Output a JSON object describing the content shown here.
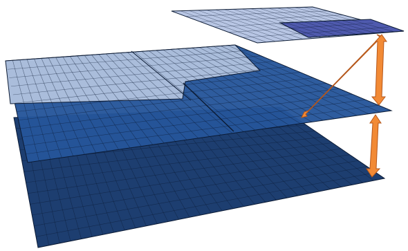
{
  "colors": {
    "background": "#ffffff",
    "grid_line": "#0b1a33",
    "arrow_fill": "#f28a35",
    "arrow_stroke": "#b4561a",
    "top_layer_light": "#b8c6e4",
    "top_layer_highlight": "#4f5aae",
    "middle_layer_light": "#aabddb",
    "middle_layer_dark": "#25559a",
    "bottom_layer_dark": "#1d3e70"
  },
  "diagram": {
    "layers": [
      {
        "name": "top-layer",
        "level": 1,
        "regions": 2
      },
      {
        "name": "middle-layer",
        "level": 2,
        "regions": 2
      },
      {
        "name": "bottom-layer",
        "level": 3,
        "regions": 1
      }
    ],
    "connectors": [
      {
        "name": "arrow-top-to-middle-diagonal",
        "type": "double-arrow"
      },
      {
        "name": "arrow-top-to-middle-vertical",
        "type": "double-arrow"
      },
      {
        "name": "arrow-middle-to-bottom",
        "type": "double-arrow"
      }
    ]
  }
}
